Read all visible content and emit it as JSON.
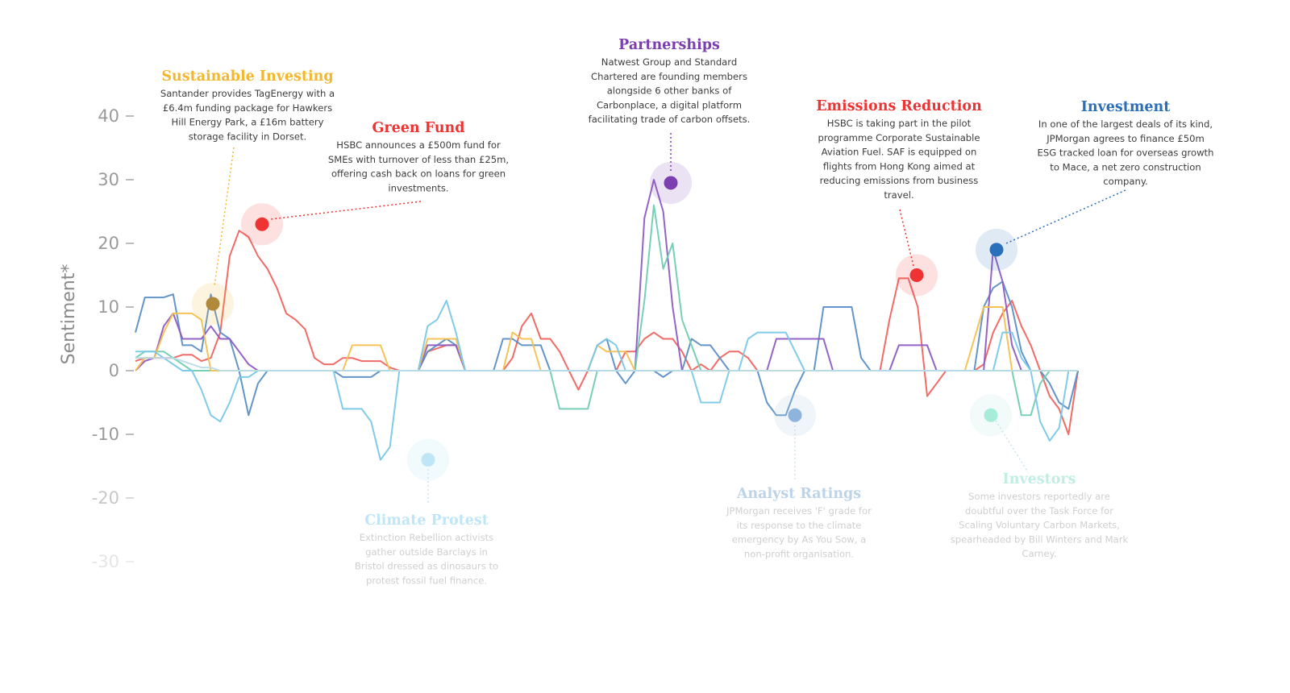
{
  "chart_data": {
    "type": "line",
    "ylabel": "Sentiment*",
    "ylim": [
      -35,
      40
    ],
    "yticks": [
      40,
      30,
      20,
      10,
      0,
      -10,
      -20,
      -30
    ],
    "x": [
      0,
      2,
      4,
      6,
      8,
      10,
      12,
      14,
      16,
      18,
      20,
      22,
      24,
      26,
      28,
      30,
      32,
      34,
      36,
      38,
      40,
      42,
      44,
      46,
      48,
      50,
      52,
      54,
      56,
      58,
      60,
      62,
      64,
      66,
      68,
      70,
      72,
      74,
      76,
      78,
      80,
      82,
      84,
      86,
      88,
      90,
      92,
      94,
      96,
      98,
      100,
      102,
      104,
      106,
      108,
      110,
      112,
      114,
      116,
      118,
      120,
      122,
      124,
      126,
      128,
      130,
      132,
      134,
      136,
      138,
      140,
      142,
      144,
      146,
      148,
      150,
      152,
      154,
      156,
      158,
      160,
      162,
      164,
      166,
      168,
      170,
      172,
      174,
      176,
      178,
      180,
      182,
      184,
      186,
      188,
      190,
      192,
      194,
      196,
      198,
      200
    ],
    "series": [
      {
        "color": "#f0635f",
        "values": [
          1.5,
          2,
          2,
          2,
          2,
          2.5,
          2.5,
          1.5,
          2,
          6,
          18,
          22,
          21,
          18,
          16,
          13,
          9,
          8,
          6.5,
          2,
          1,
          1,
          2,
          2,
          1.5,
          1.5,
          1.5,
          0.5,
          0,
          0,
          0,
          3,
          3.5,
          4,
          4,
          0,
          0,
          0,
          0,
          0,
          2,
          7,
          9,
          5,
          5,
          3,
          0,
          -3,
          0,
          0,
          0,
          0,
          3,
          3,
          5,
          6,
          5,
          5,
          3,
          0,
          1,
          0,
          2,
          3,
          3,
          2,
          0,
          0,
          0,
          0,
          0,
          0,
          0,
          0,
          0,
          0,
          0,
          0,
          0,
          0,
          8,
          14.5,
          14.5,
          10,
          -4,
          -2,
          0,
          0,
          0,
          0,
          1,
          6,
          9,
          11,
          7,
          4,
          0,
          -4,
          -6,
          -10,
          0
        ]
      },
      {
        "color": "#5b8fc7",
        "values": [
          6,
          11.5,
          11.5,
          11.5,
          12,
          4,
          4,
          3,
          12,
          6,
          5,
          0,
          -7,
          -2,
          0,
          0,
          0,
          0,
          0,
          0,
          0,
          0,
          -1,
          -1,
          -1,
          -1,
          0,
          0,
          0,
          0,
          0,
          3,
          4,
          5,
          4,
          0,
          0,
          0,
          0,
          5,
          5,
          4,
          4,
          4,
          0,
          0,
          0,
          0,
          0,
          4,
          5,
          0,
          -2,
          0,
          0,
          0,
          -1,
          0,
          0,
          5,
          4,
          4,
          2,
          0,
          0,
          0,
          0,
          -5,
          -7,
          -7,
          -3,
          0,
          0,
          10,
          10,
          10,
          10,
          2,
          0,
          0,
          0,
          0,
          0,
          0,
          0,
          0,
          0,
          0,
          0,
          0,
          10,
          13,
          14,
          10,
          3,
          0,
          0,
          -2,
          -5,
          -6,
          0
        ]
      },
      {
        "color": "#8e5bc3",
        "values": [
          0,
          1.5,
          2,
          7,
          9,
          5,
          5,
          5,
          7,
          5,
          5,
          3,
          1,
          0,
          0,
          0,
          0,
          0,
          0,
          0,
          0,
          0,
          0,
          0,
          0,
          0,
          0,
          0,
          0,
          0,
          0,
          4,
          4,
          4,
          4,
          0,
          0,
          0,
          0,
          0,
          0,
          0,
          0,
          0,
          0,
          0,
          0,
          0,
          0,
          0,
          0,
          0,
          0,
          0,
          24,
          30,
          25,
          10,
          0,
          0,
          0,
          0,
          0,
          0,
          0,
          0,
          0,
          0,
          5,
          5,
          5,
          5,
          5,
          5,
          0,
          0,
          0,
          0,
          0,
          0,
          0,
          4,
          4,
          4,
          4,
          0,
          0,
          0,
          0,
          0,
          0,
          19,
          14,
          4,
          0,
          0,
          0,
          0,
          0,
          0,
          0
        ]
      },
      {
        "color": "#6fcdb3",
        "values": [
          2,
          3,
          3,
          3,
          2,
          1,
          0,
          0,
          0,
          0,
          0,
          0,
          0,
          0,
          0,
          0,
          0,
          0,
          0,
          0,
          0,
          0,
          0,
          0,
          0,
          0,
          0,
          0,
          0,
          0,
          0,
          0,
          0,
          0,
          0,
          0,
          0,
          0,
          0,
          0,
          0,
          0,
          0,
          0,
          0,
          -6,
          -6,
          -6,
          -6,
          0,
          0,
          0,
          0,
          0,
          11,
          26,
          16,
          20,
          8,
          4,
          0,
          0,
          0,
          0,
          0,
          0,
          0,
          0,
          0,
          0,
          0,
          0,
          0,
          0,
          0,
          0,
          0,
          0,
          0,
          0,
          0,
          0,
          0,
          0,
          0,
          0,
          0,
          0,
          0,
          0,
          0,
          0,
          0,
          0,
          -7,
          -7,
          -2,
          0,
          0,
          0,
          0
        ]
      },
      {
        "color": "#f4c04e",
        "values": [
          0,
          2,
          2,
          6,
          9,
          9,
          9,
          8,
          0,
          0,
          0,
          0,
          0,
          0,
          0,
          0,
          0,
          0,
          0,
          0,
          0,
          0,
          0,
          4,
          4,
          4,
          4,
          0,
          0,
          0,
          0,
          5,
          5,
          5,
          5,
          0,
          0,
          0,
          0,
          0,
          6,
          5,
          5,
          0,
          0,
          0,
          0,
          0,
          0,
          4,
          3,
          3,
          3,
          0,
          0,
          0,
          0,
          0,
          0,
          0,
          0,
          0,
          0,
          0,
          0,
          0,
          0,
          0,
          0,
          0,
          0,
          0,
          0,
          0,
          0,
          0,
          0,
          0,
          0,
          0,
          0,
          0,
          0,
          0,
          0,
          0,
          0,
          0,
          0,
          5,
          10,
          10,
          10,
          0,
          0,
          0,
          0,
          0,
          0,
          0,
          0
        ]
      },
      {
        "color": "#79c8e8",
        "values": [
          3,
          3,
          3,
          2,
          1,
          0,
          0,
          -3,
          -7,
          -8,
          -5,
          -1,
          -1,
          0,
          0,
          0,
          0,
          0,
          0,
          0,
          0,
          0,
          -6,
          -6,
          -6,
          -8,
          -14,
          -12,
          0,
          0,
          0,
          7,
          8,
          11,
          6,
          0,
          0,
          0,
          0,
          0,
          0,
          0,
          0,
          0,
          0,
          0,
          0,
          0,
          0,
          4,
          5,
          4,
          0,
          0,
          0,
          0,
          0,
          0,
          0,
          0,
          -5,
          -5,
          -5,
          0,
          0,
          5,
          6,
          6,
          6,
          6,
          3,
          0,
          0,
          0,
          0,
          0,
          0,
          0,
          0,
          0,
          0,
          0,
          0,
          0,
          0,
          0,
          0,
          0,
          0,
          0,
          0,
          0,
          6,
          6,
          2,
          0,
          -8,
          -11,
          -9,
          0,
          0
        ]
      },
      {
        "color": "#b9dbe8",
        "values": [
          2,
          2,
          2,
          2,
          2,
          1.5,
          1,
          0.5,
          0.5,
          0,
          0,
          0,
          0,
          0,
          0,
          0,
          0,
          0,
          0,
          0,
          0,
          0,
          0,
          0,
          0,
          0,
          0,
          0,
          0,
          0,
          0,
          0,
          0,
          0,
          0,
          0,
          0,
          0,
          0,
          0,
          0,
          0,
          0,
          0,
          0,
          0,
          0,
          0,
          0,
          0,
          0,
          0,
          0,
          0,
          0,
          0,
          0,
          0,
          0,
          0,
          0,
          0,
          0,
          0,
          0,
          0,
          0,
          0,
          0,
          0,
          0,
          0,
          0,
          0,
          0,
          0,
          0,
          0,
          0,
          0,
          0,
          0,
          0,
          0,
          0,
          0,
          0,
          0,
          0,
          0,
          0,
          0,
          0,
          0,
          0,
          0,
          0,
          0,
          0,
          0,
          0
        ]
      }
    ],
    "events": [
      {
        "title": "Sustainable Investing",
        "color": "#f3b72e",
        "value": 10.5,
        "lines": [
          "Santander provides TagEnergy with a",
          "£6.4m funding package for Hawkers",
          "Hill Energy Park, a £16m battery",
          "storage facility in Dorset."
        ],
        "faded": false
      },
      {
        "title": "Green Fund",
        "color": "#ef3232",
        "value": 23,
        "lines": [
          "HSBC announces a £500m fund for",
          "SMEs with turnover of less than £25m,",
          "offering cash back on loans for green",
          "investments."
        ],
        "faded": false
      },
      {
        "title": "Partnerships",
        "color": "#7b3fb0",
        "value": 29.5,
        "lines": [
          "Natwest Group and Standard",
          "Chartered are founding members",
          "alongside 6 other banks of",
          "Carbonplace, a digital platform",
          "facilitating trade of carbon offsets."
        ],
        "faded": false
      },
      {
        "title": "Emissions Reduction",
        "color": "#ef3232",
        "value": 15,
        "lines": [
          "HSBC is taking part in the pilot",
          "programme Corporate Sustainable",
          "Aviation Fuel. SAF is equipped on",
          "flights from Hong Kong aimed at",
          "reducing emissions from business",
          "travel."
        ],
        "faded": false
      },
      {
        "title": "Investment",
        "color": "#2a6fb9",
        "value": 19,
        "lines": [
          "In one of the largest deals of its kind,",
          "JPMorgan agrees to finance £50m",
          "ESG tracked loan for overseas growth",
          "to Mace, a net zero construction",
          "company."
        ],
        "faded": false
      },
      {
        "title": "Climate Protest",
        "color": "#bfe6f6",
        "value": -14,
        "lines": [
          "Extinction Rebellion activists",
          "gather outside Barclays in",
          "Bristol dressed as dinosaurs to",
          "protest fossil fuel finance."
        ],
        "faded": true
      },
      {
        "title": "Analyst Ratings",
        "color": "#bcd3e8",
        "value": -7,
        "lines": [
          "JPMorgan receives 'F' grade for",
          "its response to the climate",
          "emergency by As You Sow, a",
          "non-profit organisation."
        ],
        "faded": true
      },
      {
        "title": "Investors",
        "color": "#c2eee2",
        "value": -7,
        "lines": [
          "Some investors reportedly are",
          "doubtful over the Task Force for",
          "Scaling Voluntary Carbon Markets,",
          "spearheaded by Bill Winters and Mark",
          "Carney."
        ],
        "faded": true
      }
    ]
  }
}
